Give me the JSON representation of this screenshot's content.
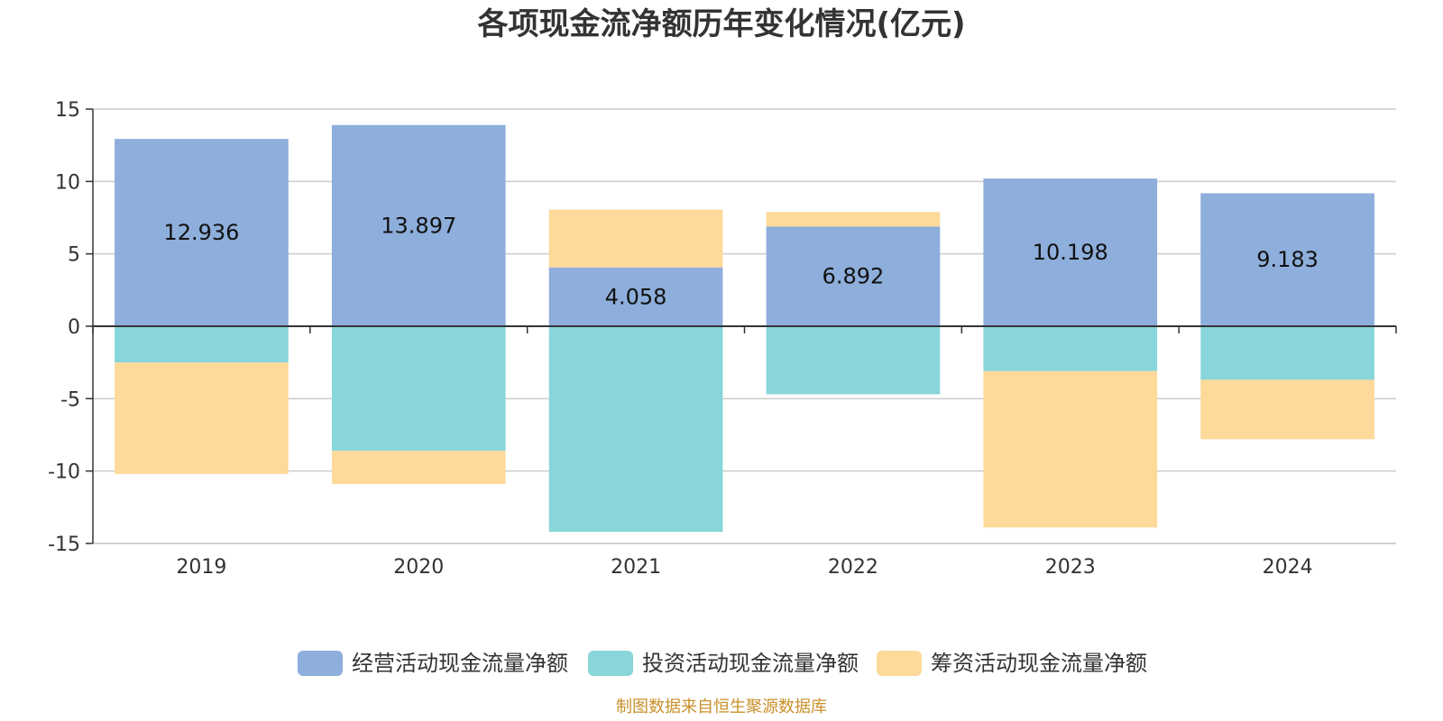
{
  "chart_data": {
    "type": "bar",
    "stacked": true,
    "title": "各项现金流净额历年变化情况(亿元)",
    "categories": [
      "2019",
      "2020",
      "2021",
      "2022",
      "2023",
      "2024"
    ],
    "ylim": [
      -15,
      15
    ],
    "yticks": [
      15,
      10,
      5,
      0,
      -5,
      -10,
      -15
    ],
    "grid": true,
    "legend_position": "bottom",
    "series": [
      {
        "name": "经营活动现金流量净额",
        "color": "#8eaedb",
        "values": [
          12.936,
          13.897,
          4.058,
          6.892,
          10.198,
          9.183
        ],
        "labels": [
          "12.936",
          "13.897",
          "4.058",
          "6.892",
          "10.198",
          "9.183"
        ]
      },
      {
        "name": "投资活动现金流量净额",
        "color": "#88d6d9",
        "values": [
          -2.5,
          -8.6,
          -14.2,
          -4.7,
          -3.1,
          -3.7
        ]
      },
      {
        "name": "筹资活动现金流量净额",
        "color": "#fdd99a",
        "values": [
          -7.7,
          -2.3,
          4.0,
          1.0,
          -10.8,
          -4.1
        ]
      }
    ]
  },
  "source": "制图数据来自恒生聚源数据库"
}
